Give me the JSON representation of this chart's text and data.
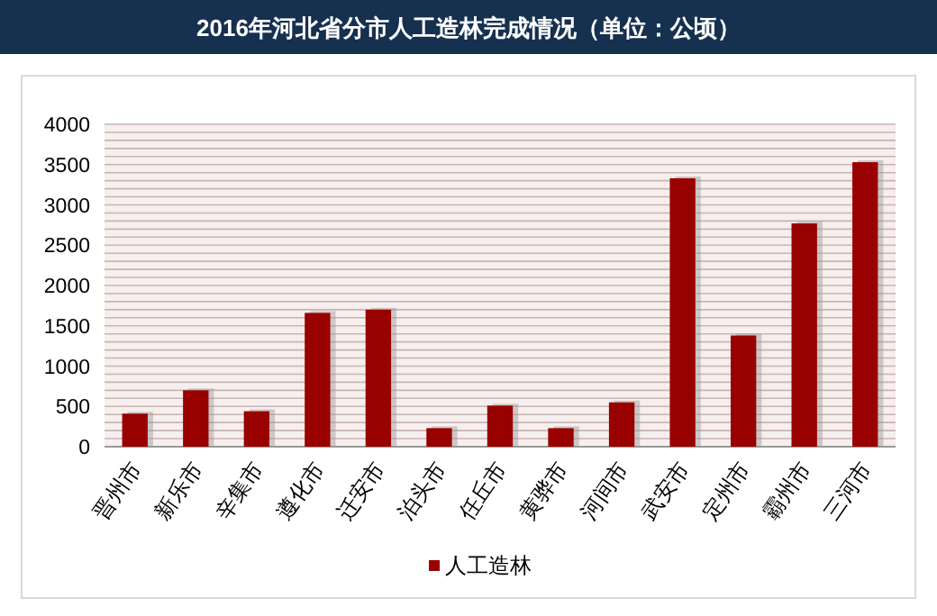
{
  "chart_data": {
    "type": "bar",
    "title": "2016年河北省分市人工造林完成情况（单位：公顷）",
    "categories": [
      "晋州市",
      "新乐市",
      "辛集市",
      "遵化市",
      "迁安市",
      "泊头市",
      "任丘市",
      "黄骅市",
      "河间市",
      "武安市",
      "定州市",
      "霸州市",
      "三河市"
    ],
    "series": [
      {
        "name": "人工造林",
        "color": "#990000",
        "values": [
          410,
          700,
          440,
          1660,
          1700,
          230,
          510,
          230,
          550,
          3330,
          1380,
          2770,
          3530
        ]
      }
    ],
    "ylim": [
      0,
      4000
    ],
    "yticks": [
      0,
      {
        "value": 100,
        "label": null
      },
      {
        "value": 200,
        "label": null
      },
      {
        "value": 300,
        "label": null
      },
      {
        "value": 400,
        "label": null
      },
      500,
      {
        "value": 600,
        "label": null
      },
      {
        "value": 700,
        "label": null
      },
      {
        "value": 800,
        "label": null
      },
      {
        "value": 900,
        "label": null
      },
      1000,
      {
        "value": 1100,
        "label": null
      },
      {
        "value": 1200,
        "label": null
      },
      {
        "value": 1300,
        "label": null
      },
      {
        "value": 1400,
        "label": null
      },
      1500,
      {
        "value": 1600,
        "label": null
      },
      {
        "value": 1700,
        "label": null
      },
      {
        "value": 1800,
        "label": null
      },
      {
        "value": 1900,
        "label": null
      },
      2000,
      {
        "value": 2100,
        "label": null
      },
      {
        "value": 2200,
        "label": null
      },
      {
        "value": 2300,
        "label": null
      },
      {
        "value": 2400,
        "label": null
      },
      2500,
      {
        "value": 2600,
        "label": null
      },
      {
        "value": 2700,
        "label": null
      },
      {
        "value": 2800,
        "label": null
      },
      {
        "value": 2900,
        "label": null
      },
      3000,
      {
        "value": 3100,
        "label": null
      },
      {
        "value": 3200,
        "label": null
      },
      {
        "value": 3300,
        "label": null
      },
      {
        "value": 3400,
        "label": null
      },
      3500,
      {
        "value": 3600,
        "label": null
      },
      {
        "value": 3700,
        "label": null
      },
      {
        "value": 3800,
        "label": null
      },
      {
        "value": 3900,
        "label": null
      },
      4000
    ],
    "grid": "y",
    "legend": "bottom"
  }
}
